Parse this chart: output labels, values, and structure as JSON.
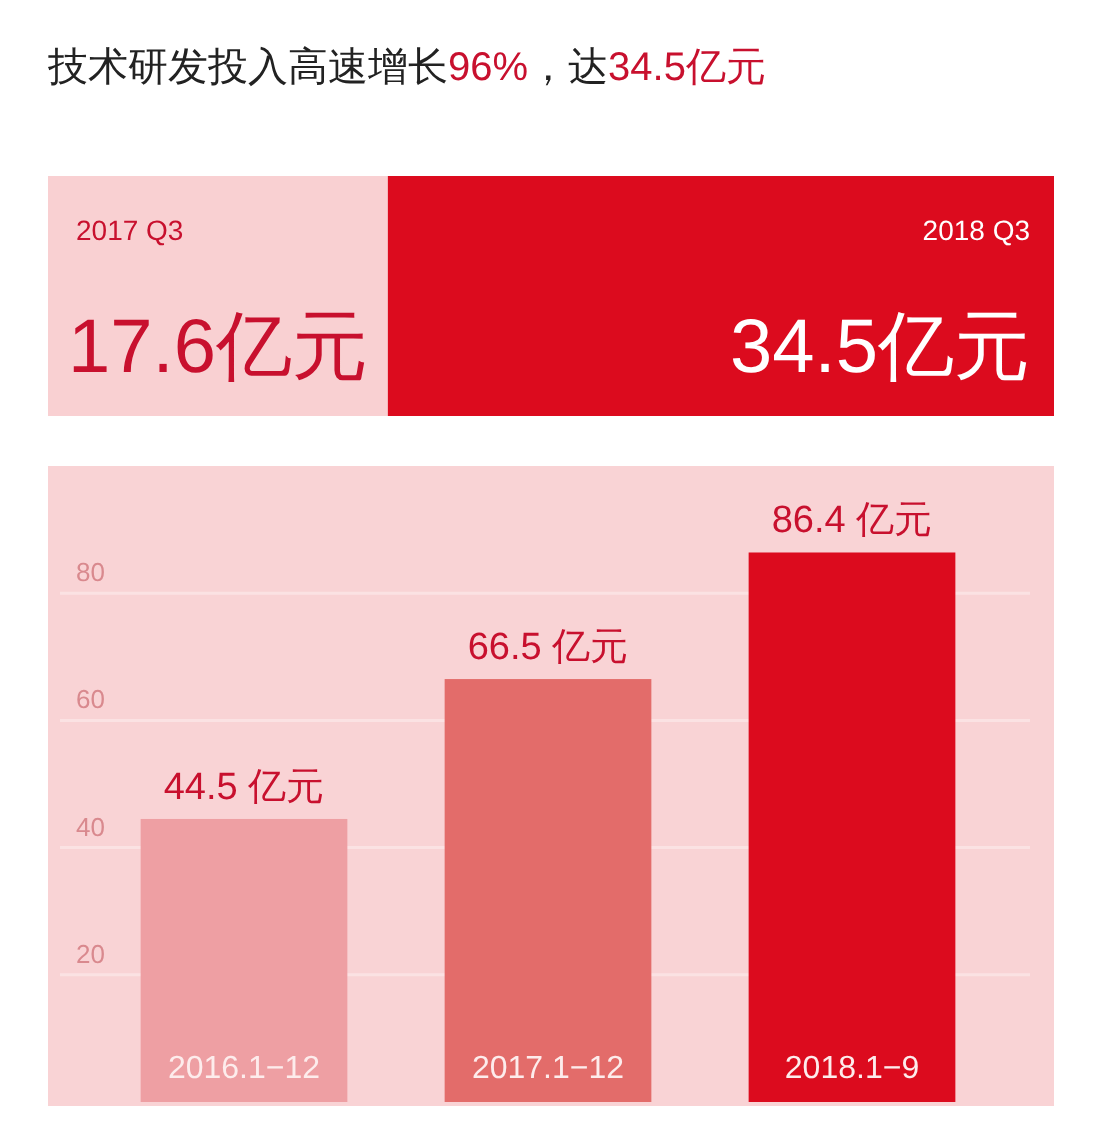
{
  "chart_data": [
    {
      "type": "other",
      "title": "技术研发投入高速增长96%，达34.5亿元",
      "categories": [
        "2017 Q3",
        "2018 Q3"
      ],
      "values": [
        17.6,
        34.5
      ],
      "value_labels": [
        "17.6亿元",
        "34.5亿元"
      ],
      "colors": [
        "#f9d0d2",
        "#dc0b1e"
      ]
    },
    {
      "type": "bar",
      "categories": [
        "2016.1−12",
        "2017.1−12",
        "2018.1−9"
      ],
      "values": [
        44.5,
        66.5,
        86.4
      ],
      "colors": [
        "#ee9fa3",
        "#e36c6a",
        "#dc0b1e"
      ],
      "value_labels": [
        "44.5 亿元",
        "66.5 亿元",
        "86.4 亿元"
      ],
      "ylim": [
        0,
        100
      ],
      "yticks": [
        20,
        40,
        60,
        80
      ],
      "grid": "y"
    }
  ]
}
